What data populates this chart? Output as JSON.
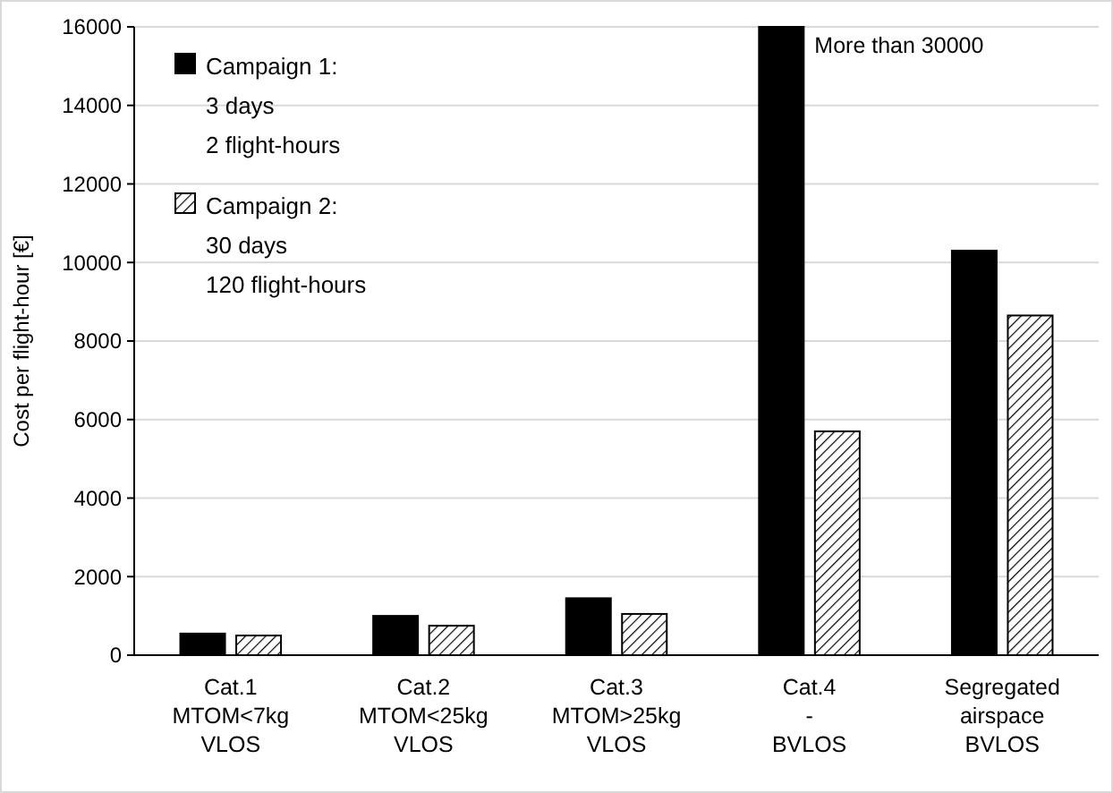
{
  "chart_data": {
    "type": "bar",
    "ylabel": "Cost per flight-hour [€]",
    "categories": [
      "Cat.1\nMTOM<7kg\nVLOS",
      "Cat.2\nMTOM<25kg\nVLOS",
      "Cat.3\nMTOM>25kg\nVLOS",
      "Cat.4\n-\nBVLOS",
      "Segregated\nairspace\nBVLOS"
    ],
    "series": [
      {
        "name": "Campaign 1:\n3 days\n2 flight-hours",
        "color": "#000000",
        "values": [
          550,
          1000,
          1450,
          16000,
          10300
        ]
      },
      {
        "name": "Campaign 2:\n30 days\n120 flight-hours",
        "color": "#000000",
        "values": [
          500,
          750,
          1050,
          5700,
          8650
        ]
      }
    ],
    "ylim": [
      0,
      16000
    ],
    "yticks": [
      0,
      2000,
      4000,
      6000,
      8000,
      10000,
      12000,
      14000,
      16000
    ],
    "grid": "y",
    "legend": "top left",
    "annotations": [
      {
        "text": "More than 30000",
        "x": "Cat.4\n-\nBVLOS",
        "y": 16000
      }
    ]
  }
}
